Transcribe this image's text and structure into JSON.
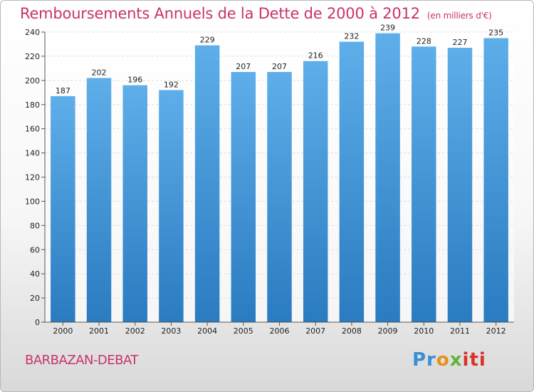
{
  "title": "Remboursements Annuels de la Dette de 2000 à 2012",
  "title_unit": "(en milliers d'€)",
  "place": "BARBAZAN-DEBAT",
  "logo": {
    "text_parts": [
      "Pr",
      "o",
      "x",
      "iti"
    ]
  },
  "colors": {
    "title": "#c8336e",
    "bar_top": "#5eaeea",
    "bar_bottom": "#2a7bc0"
  },
  "chart_data": {
    "type": "bar",
    "title": "Remboursements Annuels de la Dette de 2000 à 2012",
    "subtitle": "(en milliers d'€)",
    "categories": [
      "2000",
      "2001",
      "2002",
      "2003",
      "2004",
      "2005",
      "2006",
      "2007",
      "2008",
      "2009",
      "2010",
      "2011",
      "2012"
    ],
    "values": [
      187,
      202,
      196,
      192,
      229,
      207,
      207,
      216,
      232,
      239,
      228,
      227,
      235
    ],
    "xlabel": "",
    "ylabel": "",
    "ylim": [
      0,
      240
    ],
    "yticks": [
      0,
      20,
      40,
      60,
      80,
      100,
      120,
      140,
      160,
      180,
      200,
      220,
      240
    ],
    "grid": true,
    "data_labels": true,
    "legend": "none"
  }
}
